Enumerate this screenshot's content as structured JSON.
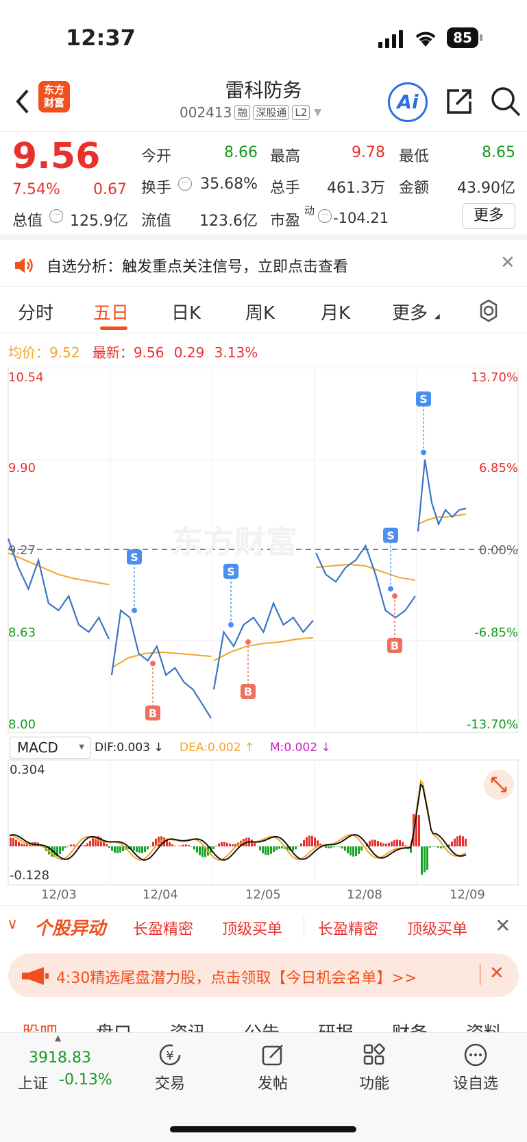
{
  "status": {
    "time": "12:37",
    "battery": "85"
  },
  "header": {
    "logo_line1": "东方",
    "logo_line2": "财富",
    "title": "雷科防务",
    "code": "002413",
    "tags": [
      "融",
      "深股通",
      "L2"
    ]
  },
  "quote": {
    "price": "9.56",
    "pct": "7.54%",
    "chg": "0.67",
    "open_label": "今开",
    "open": "8.66",
    "high_label": "最高",
    "high": "9.78",
    "low_label": "最低",
    "low": "8.65",
    "turnover_label": "换手",
    "turnover": "35.68%",
    "vol_label": "总手",
    "vol": "461.3万",
    "amt_label": "金额",
    "amt": "43.90亿",
    "mcap_label": "总值",
    "mcap": "125.9亿",
    "float_label": "流值",
    "float": "123.6亿",
    "pe_label": "市盈",
    "pe_sup": "动",
    "pe": "-104.21",
    "more": "更多"
  },
  "notice": {
    "text": "自选分析：触发重点关注信号，立即点击查看"
  },
  "tabs": [
    "分时",
    "五日",
    "日K",
    "周K",
    "月K",
    "更多"
  ],
  "avg": {
    "avg_label": "均价：",
    "avg": "9.52",
    "latest_label": "最新：",
    "latest": "9.56",
    "chg": "0.29",
    "pct": "3.13%"
  },
  "chart_data": {
    "type": "line",
    "title": "",
    "y_left_ticks": [
      "10.54",
      "9.90",
      "9.27",
      "8.63",
      "8.00"
    ],
    "y_right_ticks": [
      "13.70%",
      "6.85%",
      "0.00%",
      "-6.85%",
      "-13.70%"
    ],
    "x_labels": [
      "12/03",
      "12/04",
      "12/05",
      "12/08",
      "12/09"
    ],
    "ylim": [
      8.0,
      10.54
    ],
    "prev_close": 9.27,
    "series": [
      {
        "name": "价格",
        "color": "#3b74c4"
      },
      {
        "name": "均价",
        "color": "#f2a52a"
      }
    ],
    "signals": [
      {
        "label": "S",
        "day": "12/04"
      },
      {
        "label": "B",
        "day": "12/04"
      },
      {
        "label": "S",
        "day": "12/05"
      },
      {
        "label": "B",
        "day": "12/05"
      },
      {
        "label": "S",
        "day": "12/08"
      },
      {
        "label": "B",
        "day": "12/08"
      },
      {
        "label": "S",
        "day": "12/09"
      }
    ],
    "watermark": "东方财富"
  },
  "macd": {
    "selector": "MACD",
    "dif": "DIF:0.003 ↓",
    "dea": "DEA:0.002 ↑",
    "m": "M:0.002 ↓",
    "top": "0.304",
    "bottom": "-0.128"
  },
  "alerts": {
    "title": "个股异动",
    "items": [
      "长盈精密",
      "顶级买单",
      "长盈精密",
      "顶级买单"
    ]
  },
  "promo": {
    "text": "4:30精选尾盘潜力股，点击领取【今日机会名单】>>"
  },
  "subtabs": [
    "股吧",
    "盘口",
    "资讯",
    "公告",
    "研报",
    "财务",
    "资料"
  ],
  "bottom": {
    "index_value": "3918.83",
    "index_name": "上证",
    "index_pct": "-0.13%",
    "items": [
      "交易",
      "发帖",
      "功能",
      "设自选"
    ]
  }
}
